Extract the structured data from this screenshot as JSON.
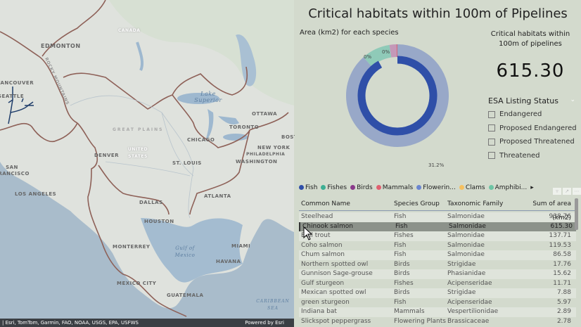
{
  "map": {
    "labels": {
      "edmonton": "EDMONTON",
      "vancouver": "VANCOUVER",
      "seattle": "SEATTLE",
      "rocky": "ROCKY MOUNTAINS",
      "canada": "CANADA",
      "lake_superior": "Lake Superior",
      "ottawa": "OTTAWA",
      "toronto": "TORONTO",
      "boston": "BOSTON",
      "great_plains": "GREAT PLAINS",
      "chicago": "CHICAGO",
      "new_york": "NEW YORK",
      "philadelphia": "PHILADELPHIA",
      "washington": "WASHINGTON",
      "united_states": "UNITED STATES",
      "denver": "DENVER",
      "st_louis": "ST. LOUIS",
      "san_francisco": "SAN FRANCISCO",
      "los_angeles": "LOS ANGELES",
      "dallas": "DALLAS",
      "atlanta": "ATLANTA",
      "houston": "HOUSTON",
      "miami": "MIAMI",
      "monterrey": "MONTERREY",
      "gulf": "Gulf of Mexico",
      "havana": "HAVANA",
      "mexico_city": "MEXICO CITY",
      "guatemala": "GUATEMALA",
      "caribbean": "CARIBBEAN SEA"
    },
    "attribution": "| Esri, TomTom, Garmin, FAO, NOAA, USGS, EPA, USFWS",
    "powered_by": "Powered by Esri"
  },
  "title": "Critical habitats within 100m of Pipelines",
  "chart_data": {
    "type": "pie",
    "title": "Area (km2) for each species",
    "data_labels": [
      "0%",
      "0%",
      "31.2%"
    ],
    "legend": [
      {
        "name": "Fish",
        "color": "#2f4fa8"
      },
      {
        "name": "Fishes",
        "color": "#3cae93"
      },
      {
        "name": "Birds",
        "color": "#8a3a8a"
      },
      {
        "name": "Mammals",
        "color": "#e06070"
      },
      {
        "name": "Flowerin...",
        "color": "#6b86d0"
      },
      {
        "name": "Clams",
        "color": "#f5c060"
      },
      {
        "name": "Amphibi...",
        "color": "#6dc4a4"
      }
    ],
    "rings": {
      "outer": [
        {
          "label": "31.2%",
          "value": 88.5,
          "color": "#98a8c8"
        },
        {
          "label": "0%",
          "value": 9,
          "color": "#8fcab8"
        },
        {
          "label": "0%",
          "value": 2.2,
          "color": "#c498b8"
        },
        {
          "value": 0.3,
          "color": "#d06880"
        }
      ],
      "inner": [
        {
          "value": 92,
          "color": "#2f4fa8"
        },
        {
          "value": 8,
          "color": "none"
        }
      ]
    }
  },
  "card": {
    "title": "Critical habitats within 100m of pipelines",
    "value": "615.30"
  },
  "slicer": {
    "title": "ESA Listing Status",
    "options": [
      "Endangered",
      "Proposed Endangered",
      "Proposed Threatened",
      "Threatened"
    ]
  },
  "table": {
    "columns": [
      "Common Name",
      "Species Group",
      "Taxonomic Family",
      "Sum of area (km2)"
    ],
    "rows": [
      [
        "Steelhead",
        "Fish",
        "Salmonidae",
        "938.76"
      ],
      [
        "Chinook salmon",
        "Fish",
        "Salmonidae",
        "615.30"
      ],
      [
        "Bull trout",
        "Fishes",
        "Salmonidae",
        "137.71"
      ],
      [
        "Coho salmon",
        "Fish",
        "Salmonidae",
        "119.53"
      ],
      [
        "Chum salmon",
        "Fish",
        "Salmonidae",
        "86.58"
      ],
      [
        "Northern spotted owl",
        "Birds",
        "Strigidae",
        "17.76"
      ],
      [
        "Gunnison Sage-grouse",
        "Birds",
        "Phasianidae",
        "15.62"
      ],
      [
        "Gulf sturgeon",
        "Fishes",
        "Acipenseridae",
        "11.71"
      ],
      [
        "Mexican spotted owl",
        "Birds",
        "Strigidae",
        "7.88"
      ],
      [
        "green sturgeon",
        "Fish",
        "Acipenseridae",
        "5.97"
      ],
      [
        "Indiana bat",
        "Mammals",
        "Vespertilionidae",
        "2.89"
      ],
      [
        "Slickspot peppergrass",
        "Flowering Plants",
        "Brassicaceae",
        "2.78"
      ]
    ],
    "selected_row": 1
  }
}
